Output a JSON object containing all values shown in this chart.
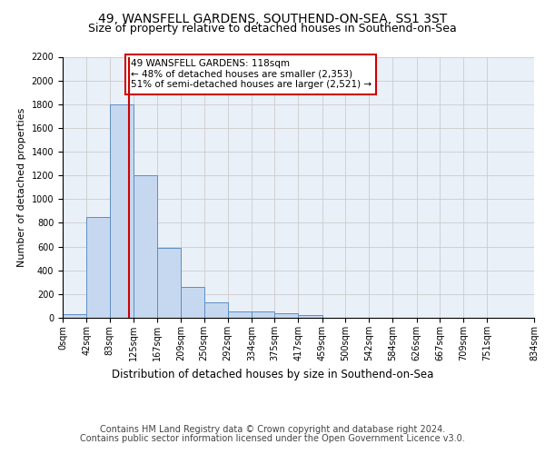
{
  "title_line1": "49, WANSFELL GARDENS, SOUTHEND-ON-SEA, SS1 3ST",
  "title_line2": "Size of property relative to detached houses in Southend-on-Sea",
  "xlabel": "Distribution of detached houses by size in Southend-on-Sea",
  "ylabel": "Number of detached properties",
  "footer_line1": "Contains HM Land Registry data © Crown copyright and database right 2024.",
  "footer_line2": "Contains public sector information licensed under the Open Government Licence v3.0.",
  "annotation_line1": "49 WANSFELL GARDENS: 118sqm",
  "annotation_line2": "← 48% of detached houses are smaller (2,353)",
  "annotation_line3": "51% of semi-detached houses are larger (2,521) →",
  "bar_values": [
    30,
    850,
    1800,
    1200,
    590,
    260,
    130,
    50,
    50,
    35,
    20,
    0,
    0,
    0,
    0,
    0,
    0,
    0,
    0
  ],
  "bin_edges": [
    0,
    42,
    83,
    125,
    167,
    209,
    250,
    292,
    334,
    375,
    417,
    459,
    500,
    542,
    584,
    626,
    667,
    709,
    751,
    834
  ],
  "tick_labels": [
    "0sqm",
    "42sqm",
    "83sqm",
    "125sqm",
    "167sqm",
    "209sqm",
    "250sqm",
    "292sqm",
    "334sqm",
    "375sqm",
    "417sqm",
    "459sqm",
    "500sqm",
    "542sqm",
    "584sqm",
    "626sqm",
    "667sqm",
    "709sqm",
    "751sqm",
    "834sqm"
  ],
  "bar_facecolor": "#c6d8ef",
  "bar_edgecolor": "#5b8ec4",
  "redline_x": 118,
  "ylim": [
    0,
    2200
  ],
  "yticks": [
    0,
    200,
    400,
    600,
    800,
    1000,
    1200,
    1400,
    1600,
    1800,
    2000,
    2200
  ],
  "grid_color": "#cccccc",
  "bg_color": "#eaf0f8",
  "annotation_box_edgecolor": "#cc0000",
  "redline_color": "#cc0000",
  "title_fontsize": 10,
  "subtitle_fontsize": 9,
  "tick_fontsize": 7,
  "ylabel_fontsize": 8,
  "xlabel_fontsize": 8.5,
  "footer_fontsize": 7,
  "annot_fontsize": 7.5
}
